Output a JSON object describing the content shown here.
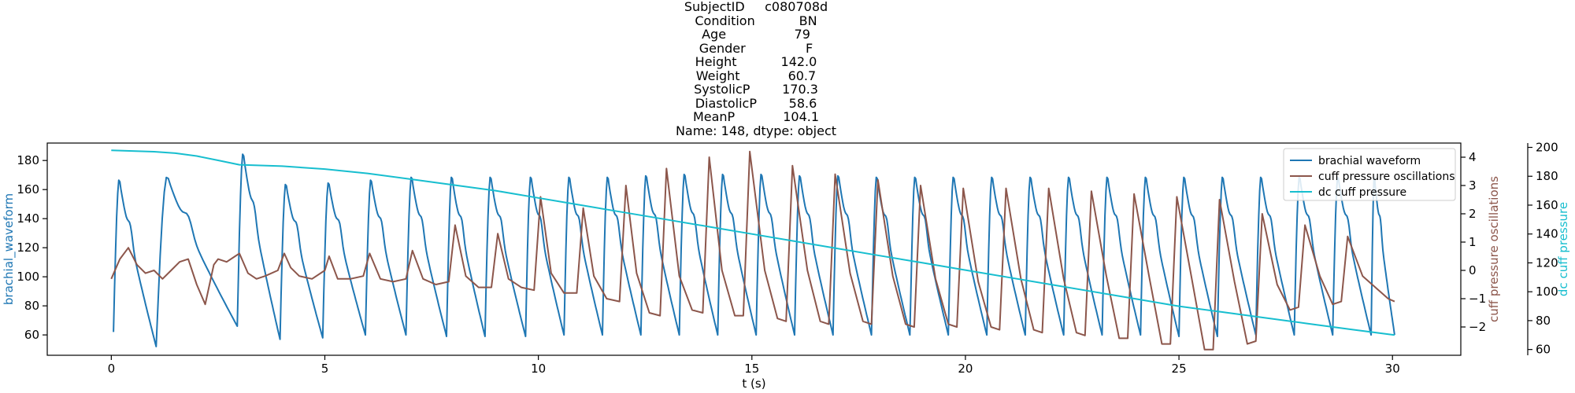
{
  "title_lines": [
    "SubjectID     c080708d",
    "Condition           BN",
    "Age                 79",
    "Gender               F",
    "Height           142.0",
    "Weight            60.7",
    "SystolicP        170.3",
    "DiastolicP        58.6",
    "MeanP            104.1",
    "Name: 148, dtype: object"
  ],
  "chart_data": {
    "type": "line",
    "xlabel": "t (s)",
    "xlim": [
      -1.5,
      31.6
    ],
    "xticks": [
      0,
      5,
      10,
      15,
      20,
      25,
      30
    ],
    "axes": {
      "left": {
        "label": "brachial_waveform",
        "color": "#1f77b4",
        "ylim": [
          46,
          192
        ],
        "ticks": [
          60,
          80,
          100,
          120,
          140,
          160,
          180
        ]
      },
      "right": {
        "label": "cuff pressure oscillations",
        "color": "#8c564b",
        "ylim": [
          -3.0,
          4.5
        ],
        "ticks": [
          -2,
          -1,
          0,
          1,
          2,
          3,
          4
        ]
      },
      "right2": {
        "label": "dc cuff pressure",
        "color": "#17becf",
        "ylim": [
          56,
          203
        ],
        "ticks": [
          60,
          80,
          100,
          120,
          140,
          160,
          180,
          200
        ]
      }
    },
    "tick_labels": {
      "x": [
        "0",
        "5",
        "10",
        "15",
        "20",
        "25",
        "30"
      ],
      "left": [
        "60",
        "80",
        "100",
        "120",
        "140",
        "160",
        "180"
      ],
      "right": [
        "−2",
        "−1",
        "0",
        "1",
        "2",
        "3",
        "4"
      ],
      "right2": [
        "60",
        "80",
        "100",
        "120",
        "140",
        "160",
        "180",
        "200"
      ]
    },
    "legend": {
      "position": "top-right",
      "entries": [
        {
          "name": "brachial waveform",
          "color": "#1f77b4"
        },
        {
          "name": "cuff pressure oscillations",
          "color": "#8c564b"
        },
        {
          "name": "dc cuff pressure",
          "color": "#17becf"
        }
      ]
    },
    "series": [
      {
        "name": "brachial waveform",
        "axis": "left",
        "color": "#1f77b4",
        "kind": "pulse",
        "beats": [
          {
            "t": 0.05,
            "peak": 168,
            "trough": 55
          },
          {
            "t": 1.05,
            "peak": 170,
            "trough": 52
          },
          {
            "t": 2.95,
            "peak": 186,
            "trough": 66
          },
          {
            "t": 3.95,
            "peak": 165,
            "trough": 57
          },
          {
            "t": 4.95,
            "peak": 166,
            "trough": 58
          },
          {
            "t": 5.95,
            "peak": 168,
            "trough": 60
          },
          {
            "t": 6.9,
            "peak": 170,
            "trough": 60
          },
          {
            "t": 7.85,
            "peak": 170,
            "trough": 59
          },
          {
            "t": 8.75,
            "peak": 170,
            "trough": 59
          },
          {
            "t": 9.7,
            "peak": 170,
            "trough": 59
          },
          {
            "t": 10.6,
            "peak": 170,
            "trough": 60
          },
          {
            "t": 11.5,
            "peak": 170,
            "trough": 60
          },
          {
            "t": 12.4,
            "peak": 171,
            "trough": 60
          },
          {
            "t": 13.3,
            "peak": 172,
            "trough": 60
          },
          {
            "t": 14.2,
            "peak": 172,
            "trough": 60
          },
          {
            "t": 15.1,
            "peak": 172,
            "trough": 60
          },
          {
            "t": 16.0,
            "peak": 171,
            "trough": 60
          },
          {
            "t": 16.9,
            "peak": 171,
            "trough": 60
          },
          {
            "t": 17.8,
            "peak": 170,
            "trough": 60
          },
          {
            "t": 18.7,
            "peak": 170,
            "trough": 60
          },
          {
            "t": 19.6,
            "peak": 170,
            "trough": 60
          },
          {
            "t": 20.5,
            "peak": 170,
            "trough": 60
          },
          {
            "t": 21.4,
            "peak": 170,
            "trough": 60
          },
          {
            "t": 22.3,
            "peak": 170,
            "trough": 60
          },
          {
            "t": 23.2,
            "peak": 170,
            "trough": 60
          },
          {
            "t": 24.1,
            "peak": 170,
            "trough": 60
          },
          {
            "t": 25.0,
            "peak": 170,
            "trough": 59
          },
          {
            "t": 25.9,
            "peak": 170,
            "trough": 59
          },
          {
            "t": 26.8,
            "peak": 170,
            "trough": 60
          },
          {
            "t": 27.7,
            "peak": 170,
            "trough": 60
          },
          {
            "t": 28.6,
            "peak": 170,
            "trough": 60
          },
          {
            "t": 29.5,
            "peak": 170,
            "trough": 60
          }
        ],
        "end_value": 60,
        "end_t": 30.05
      },
      {
        "name": "cuff pressure oscillations",
        "axis": "right",
        "color": "#8c564b",
        "kind": "points",
        "points": [
          [
            0.0,
            -0.3
          ],
          [
            0.2,
            0.4
          ],
          [
            0.4,
            0.8
          ],
          [
            0.6,
            0.2
          ],
          [
            0.8,
            -0.1
          ],
          [
            1.0,
            0.0
          ],
          [
            1.2,
            -0.3
          ],
          [
            1.4,
            0.0
          ],
          [
            1.6,
            0.3
          ],
          [
            1.8,
            0.4
          ],
          [
            2.0,
            -0.5
          ],
          [
            2.2,
            -1.2
          ],
          [
            2.4,
            0.2
          ],
          [
            2.5,
            0.4
          ],
          [
            2.7,
            0.3
          ],
          [
            2.9,
            0.5
          ],
          [
            3.0,
            0.6
          ],
          [
            3.2,
            -0.1
          ],
          [
            3.4,
            -0.3
          ],
          [
            3.6,
            -0.2
          ],
          [
            3.9,
            0.0
          ],
          [
            4.05,
            0.6
          ],
          [
            4.2,
            0.1
          ],
          [
            4.4,
            -0.2
          ],
          [
            4.7,
            -0.3
          ],
          [
            5.0,
            0.0
          ],
          [
            5.1,
            0.5
          ],
          [
            5.3,
            -0.3
          ],
          [
            5.6,
            -0.3
          ],
          [
            5.9,
            -0.2
          ],
          [
            6.05,
            0.6
          ],
          [
            6.3,
            -0.3
          ],
          [
            6.6,
            -0.4
          ],
          [
            6.9,
            -0.3
          ],
          [
            7.05,
            0.7
          ],
          [
            7.3,
            -0.3
          ],
          [
            7.6,
            -0.5
          ],
          [
            7.9,
            -0.4
          ],
          [
            8.05,
            1.6
          ],
          [
            8.3,
            -0.2
          ],
          [
            8.6,
            -0.6
          ],
          [
            8.9,
            -0.6
          ],
          [
            9.05,
            1.3
          ],
          [
            9.3,
            -0.3
          ],
          [
            9.6,
            -0.6
          ],
          [
            9.9,
            -0.7
          ],
          [
            10.05,
            2.6
          ],
          [
            10.3,
            -0.1
          ],
          [
            10.6,
            -0.8
          ],
          [
            10.9,
            -0.8
          ],
          [
            11.05,
            2.2
          ],
          [
            11.3,
            -0.2
          ],
          [
            11.6,
            -1.0
          ],
          [
            11.9,
            -1.1
          ],
          [
            12.05,
            3.0
          ],
          [
            12.3,
            -0.1
          ],
          [
            12.6,
            -1.5
          ],
          [
            12.85,
            -1.6
          ],
          [
            13.0,
            3.6
          ],
          [
            13.3,
            -0.2
          ],
          [
            13.6,
            -1.4
          ],
          [
            13.85,
            -1.5
          ],
          [
            14.0,
            4.0
          ],
          [
            14.3,
            0.0
          ],
          [
            14.6,
            -1.6
          ],
          [
            14.8,
            -1.6
          ],
          [
            14.95,
            4.2
          ],
          [
            15.3,
            0.0
          ],
          [
            15.6,
            -1.7
          ],
          [
            15.8,
            -1.8
          ],
          [
            15.95,
            3.7
          ],
          [
            16.3,
            0.0
          ],
          [
            16.6,
            -1.8
          ],
          [
            16.8,
            -1.9
          ],
          [
            16.95,
            3.4
          ],
          [
            17.3,
            -0.1
          ],
          [
            17.6,
            -1.8
          ],
          [
            17.8,
            -1.9
          ],
          [
            17.95,
            3.2
          ],
          [
            18.3,
            -0.2
          ],
          [
            18.6,
            -1.9
          ],
          [
            18.8,
            -2.0
          ],
          [
            18.95,
            3.0
          ],
          [
            19.3,
            -0.3
          ],
          [
            19.6,
            -1.9
          ],
          [
            19.8,
            -2.0
          ],
          [
            19.95,
            2.9
          ],
          [
            20.3,
            -0.4
          ],
          [
            20.6,
            -2.0
          ],
          [
            20.8,
            -2.1
          ],
          [
            20.95,
            2.9
          ],
          [
            21.3,
            -0.3
          ],
          [
            21.6,
            -2.1
          ],
          [
            21.8,
            -2.2
          ],
          [
            21.95,
            2.9
          ],
          [
            22.3,
            -0.3
          ],
          [
            22.6,
            -2.2
          ],
          [
            22.8,
            -2.3
          ],
          [
            22.95,
            2.8
          ],
          [
            23.3,
            -0.2
          ],
          [
            23.6,
            -2.4
          ],
          [
            23.8,
            -2.4
          ],
          [
            23.95,
            2.7
          ],
          [
            24.3,
            -0.2
          ],
          [
            24.6,
            -2.6
          ],
          [
            24.8,
            -2.6
          ],
          [
            24.95,
            2.6
          ],
          [
            25.3,
            -0.3
          ],
          [
            25.6,
            -2.8
          ],
          [
            25.8,
            -2.8
          ],
          [
            25.95,
            2.5
          ],
          [
            26.3,
            -0.4
          ],
          [
            26.6,
            -2.6
          ],
          [
            26.8,
            -2.5
          ],
          [
            26.95,
            2.0
          ],
          [
            27.3,
            -0.5
          ],
          [
            27.6,
            -1.4
          ],
          [
            27.8,
            -1.3
          ],
          [
            27.95,
            1.6
          ],
          [
            28.3,
            -0.2
          ],
          [
            28.6,
            -1.2
          ],
          [
            28.8,
            -1.1
          ],
          [
            28.95,
            1.2
          ],
          [
            29.3,
            -0.2
          ],
          [
            29.6,
            -0.6
          ],
          [
            29.9,
            -1.0
          ],
          [
            30.05,
            -1.1
          ]
        ]
      },
      {
        "name": "dc cuff pressure",
        "axis": "right2",
        "color": "#17becf",
        "kind": "points",
        "points": [
          [
            0.0,
            198
          ],
          [
            1.0,
            197
          ],
          [
            1.5,
            196
          ],
          [
            2.0,
            194
          ],
          [
            2.5,
            191
          ],
          [
            3.0,
            188
          ],
          [
            4.0,
            187
          ],
          [
            5.0,
            185
          ],
          [
            6.0,
            182
          ],
          [
            7.0,
            178
          ],
          [
            8.0,
            174
          ],
          [
            9.0,
            170
          ],
          [
            10.0,
            165
          ],
          [
            11.0,
            160
          ],
          [
            12.0,
            155
          ],
          [
            13.0,
            150
          ],
          [
            14.0,
            145
          ],
          [
            15.0,
            140
          ],
          [
            16.0,
            135
          ],
          [
            17.0,
            130
          ],
          [
            18.0,
            125
          ],
          [
            19.0,
            120
          ],
          [
            20.0,
            115
          ],
          [
            21.0,
            110
          ],
          [
            22.0,
            105
          ],
          [
            23.0,
            100
          ],
          [
            24.0,
            95
          ],
          [
            25.0,
            90
          ],
          [
            26.0,
            86
          ],
          [
            27.0,
            82
          ],
          [
            28.0,
            78
          ],
          [
            29.0,
            74
          ],
          [
            30.05,
            70
          ]
        ]
      }
    ]
  }
}
